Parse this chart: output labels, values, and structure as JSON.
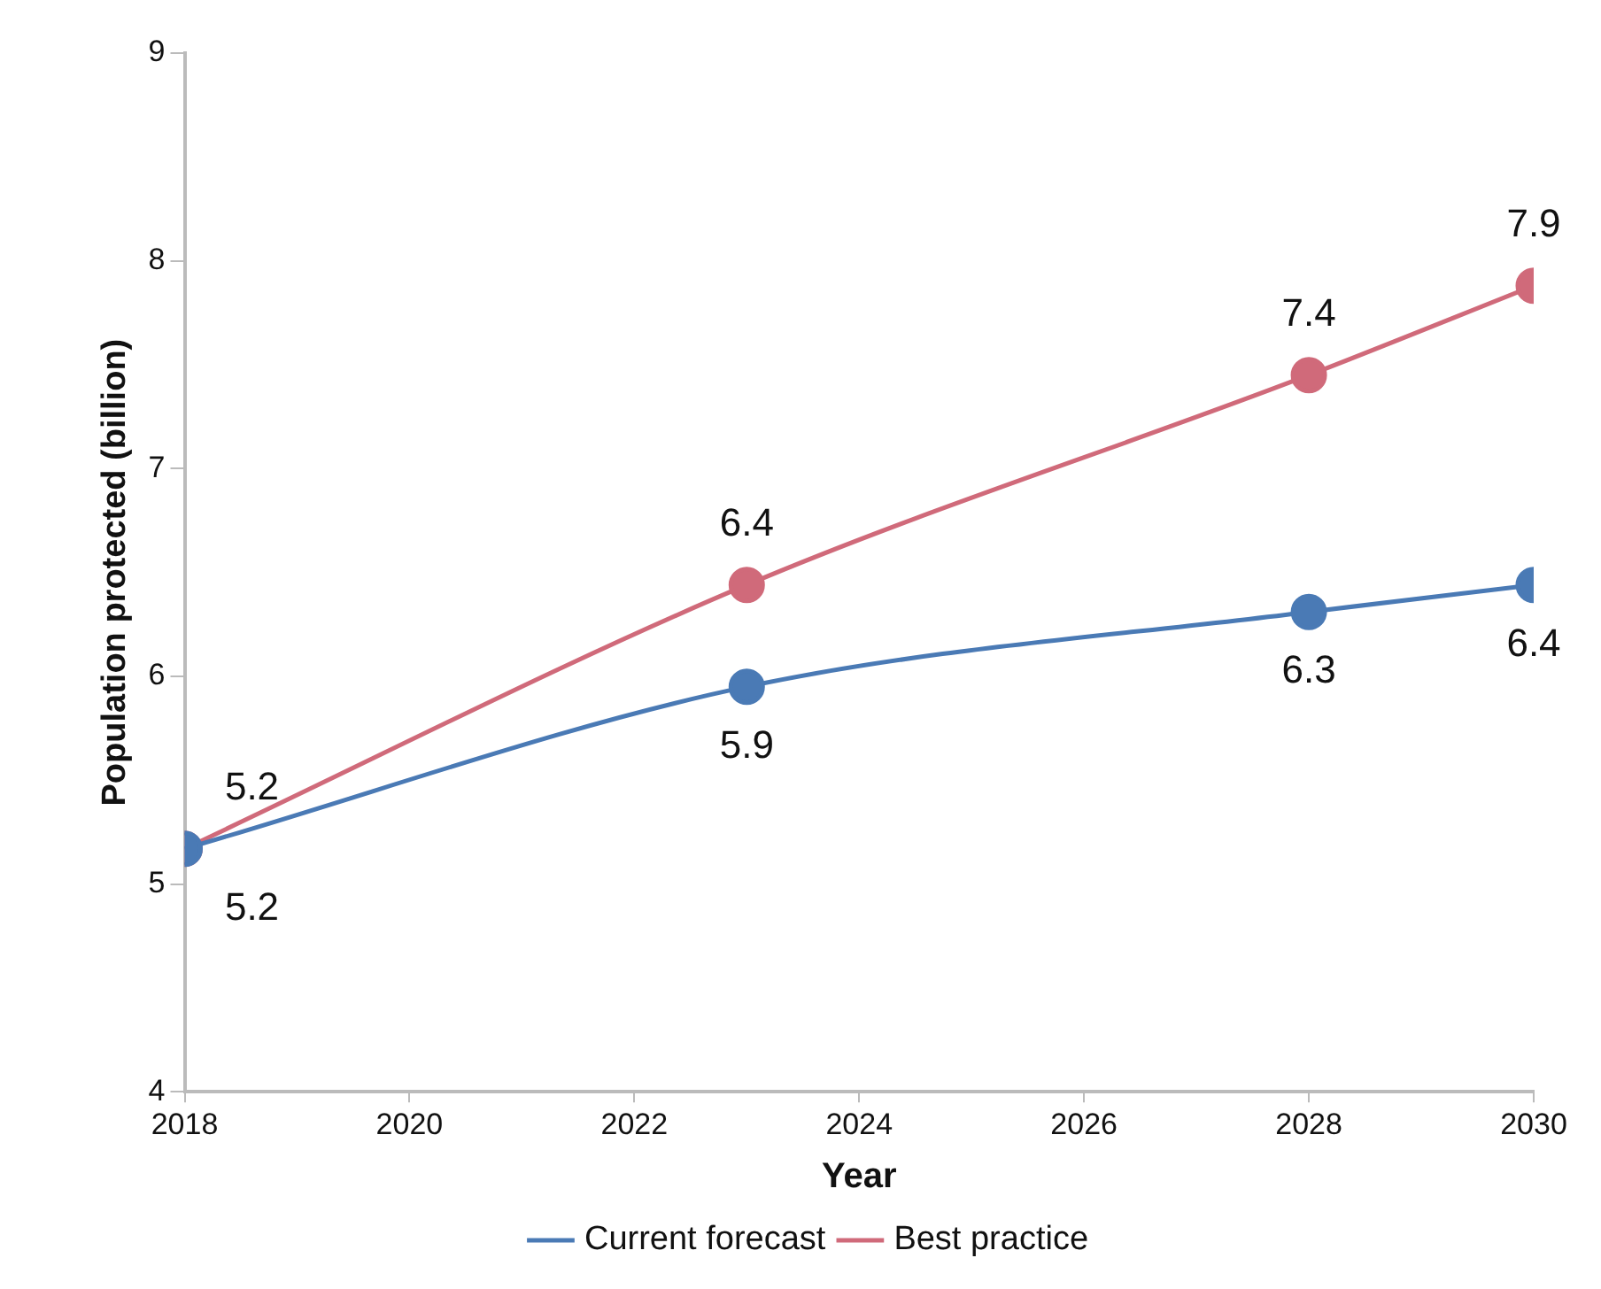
{
  "chart_data": {
    "type": "line",
    "xlabel": "Year",
    "ylabel": "Population protected (billion)",
    "x": [
      2018,
      2023,
      2028,
      2030
    ],
    "series": [
      {
        "name": "Current forecast",
        "color": "#4a7ab5",
        "values": [
          5.17,
          5.95,
          6.31,
          6.44
        ],
        "value_labels": [
          "5.2",
          "5.9",
          "6.3",
          "6.4"
        ]
      },
      {
        "name": "Best practice",
        "color": "#d06a7a",
        "values": [
          5.17,
          6.44,
          7.45,
          7.88
        ],
        "value_labels": [
          "5.2",
          "6.4",
          "7.4",
          "7.9"
        ]
      }
    ],
    "xlim": [
      2018,
      2030
    ],
    "xticks": [
      2018,
      2020,
      2022,
      2024,
      2026,
      2028,
      2030
    ],
    "ylim": [
      4,
      9
    ],
    "yticks": [
      4,
      5,
      6,
      7,
      8,
      9
    ],
    "grid": false,
    "legend": "bottom",
    "marker": "circle",
    "line_style": "solid"
  }
}
